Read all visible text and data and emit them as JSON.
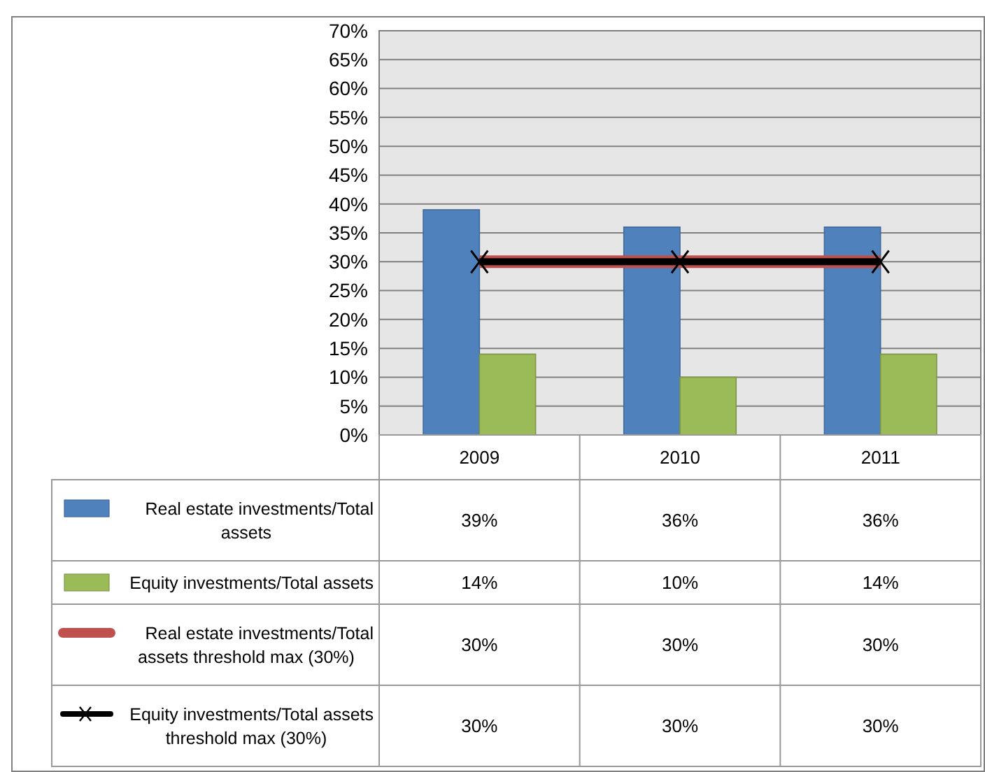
{
  "chart_data": {
    "type": "bar",
    "categories": [
      "2009",
      "2010",
      "2011"
    ],
    "series": [
      {
        "name": "Real estate investments/Total assets",
        "color": "#4f81bd",
        "values": [
          39,
          36,
          36
        ],
        "value_labels": [
          "39%",
          "36%",
          "36%"
        ]
      },
      {
        "name": "Equity investments/Total assets",
        "color": "#9bbb59",
        "values": [
          14,
          10,
          14
        ],
        "value_labels": [
          "14%",
          "10%",
          "14%"
        ]
      },
      {
        "name": "Real estate investments/Total assets threshold max (30%)",
        "type": "line",
        "color": "#c0504d",
        "values": [
          30,
          30,
          30
        ],
        "value_labels": [
          "30%",
          "30%",
          "30%"
        ],
        "marker": "none"
      },
      {
        "name": "Equity investments/Total assets threshold max (30%)",
        "type": "line",
        "color": "#000000",
        "values": [
          30,
          30,
          30
        ],
        "value_labels": [
          "30%",
          "30%",
          "30%"
        ],
        "marker": "cross"
      }
    ],
    "ylim": [
      0,
      70
    ],
    "yticks": [
      {
        "value": 0,
        "label": "0%"
      },
      {
        "value": 5,
        "label": "5%"
      },
      {
        "value": 10,
        "label": "10%"
      },
      {
        "value": 15,
        "label": "15%"
      },
      {
        "value": 20,
        "label": "20%"
      },
      {
        "value": 25,
        "label": "25%"
      },
      {
        "value": 30,
        "label": "30%"
      },
      {
        "value": 35,
        "label": "35%"
      },
      {
        "value": 40,
        "label": "40%"
      },
      {
        "value": 45,
        "label": "45%"
      },
      {
        "value": 50,
        "label": "50%"
      },
      {
        "value": 55,
        "label": "55%"
      },
      {
        "value": 60,
        "label": "60%"
      },
      {
        "value": 65,
        "label": "65%"
      },
      {
        "value": 70,
        "label": "70%"
      }
    ],
    "grid": "y",
    "legend": "bottom"
  }
}
